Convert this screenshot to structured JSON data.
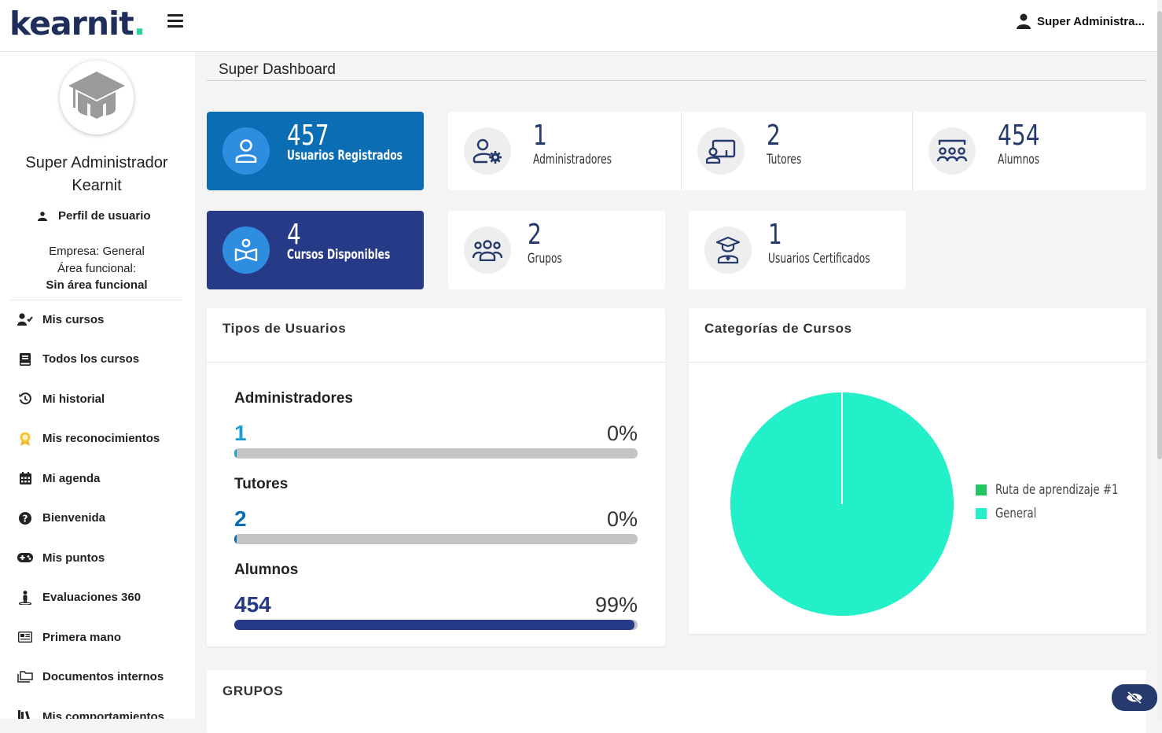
{
  "header": {
    "logo_text": "kearnit",
    "logo_dot": ".",
    "user_label": "Super Administra..."
  },
  "sidebar": {
    "user_name_line1": "Super Administrador",
    "user_name_line2": "Kearnit",
    "profile_label": "Perfil de usuario",
    "company_line": "Empresa: General",
    "area_label": "Área funcional:",
    "area_value": "Sin área funcional",
    "items": [
      {
        "label": "Mis cursos",
        "icon": "user-check-icon"
      },
      {
        "label": "Todos los cursos",
        "icon": "book-icon"
      },
      {
        "label": "Mi historial",
        "icon": "history-icon"
      },
      {
        "label": "Mis reconocimientos",
        "icon": "award-icon"
      },
      {
        "label": "Mi agenda",
        "icon": "calendar-icon"
      },
      {
        "label": "Bienvenida",
        "icon": "question-circle-icon"
      },
      {
        "label": "Mis puntos",
        "icon": "gamepad-icon"
      },
      {
        "label": "Evaluaciones 360",
        "icon": "person-stand-icon"
      },
      {
        "label": "Primera mano",
        "icon": "newspaper-icon"
      },
      {
        "label": "Documentos internos",
        "icon": "folders-icon"
      },
      {
        "label": "Mis comportamientos",
        "icon": "books-icon"
      }
    ]
  },
  "main": {
    "title": "Super Dashboard",
    "stats": {
      "registered": {
        "value": "457",
        "label": "Usuarios Registrados"
      },
      "admins": {
        "value": "1",
        "label": "Administradores"
      },
      "tutors": {
        "value": "2",
        "label": "Tutores"
      },
      "students": {
        "value": "454",
        "label": "Alumnos"
      },
      "courses": {
        "value": "4",
        "label": "Cursos Disponibles"
      },
      "groups": {
        "value": "2",
        "label": "Grupos"
      },
      "certified": {
        "value": "1",
        "label": "Usuarios Certificados"
      }
    },
    "user_types": {
      "title": "Tipos de Usuarios",
      "rows": [
        {
          "label": "Administradores",
          "value": "1",
          "pct": "0%",
          "fill": 0.002,
          "color": "#1a9ed4"
        },
        {
          "label": "Tutores",
          "value": "2",
          "pct": "0%",
          "fill": 0.004,
          "color": "#0b6eb4"
        },
        {
          "label": "Alumnos",
          "value": "454",
          "pct": "99%",
          "fill": 0.993,
          "color": "#263a87"
        }
      ]
    },
    "categories": {
      "title": "Categorías de Cursos"
    },
    "groups_title": "GRUPOS"
  },
  "chart_data": {
    "type": "pie",
    "categories": [
      "Ruta de aprendizaje #1",
      "General"
    ],
    "values": [
      0,
      4
    ],
    "colors": [
      "#22c55e",
      "#23efc8"
    ],
    "legend": "right"
  }
}
